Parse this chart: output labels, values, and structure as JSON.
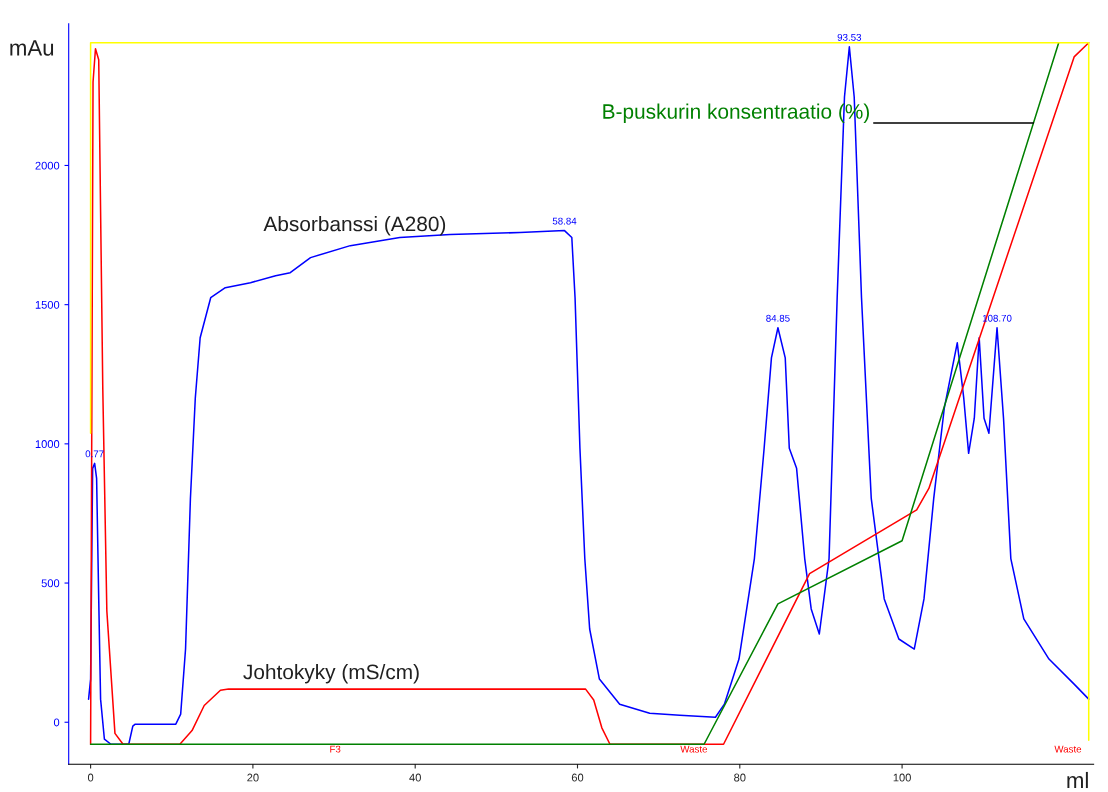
{
  "chart_data": {
    "type": "line",
    "xlabel": "ml",
    "ylabel": "mAu",
    "xlim": [
      -2.7,
      123.6
    ],
    "ylim": [
      -151,
      2509
    ],
    "xticks": [
      0,
      20,
      40,
      60,
      80,
      100
    ],
    "yticks": [
      0,
      500,
      1000,
      1500,
      2000
    ],
    "grid": false,
    "legend": false,
    "marker": "none",
    "line_style": "solid",
    "series": [
      {
        "name": "Absorbanssi (A280)",
        "color": "#0000ff",
        "x": [
          -0.25,
          0,
          0.25,
          0.5,
          0.74,
          1.0,
          1.23,
          1.7,
          2.5,
          4.7,
          5.2,
          5.5,
          10.5,
          11.1,
          11.7,
          12.3,
          12.9,
          13.5,
          14.8,
          16.6,
          19.7,
          22.8,
          24.6,
          27.1,
          32,
          38.1,
          44.3,
          52.9,
          58.4,
          59.3,
          59.7,
          60.3,
          60.9,
          61.5,
          62.7,
          65.2,
          68.9,
          72.6,
          77,
          78.1,
          79.9,
          81.8,
          83,
          83.9,
          84.7,
          85.6,
          86.1,
          87,
          88,
          88.8,
          89.8,
          91,
          92,
          92.9,
          93.5,
          94.1,
          95,
          96.2,
          97.8,
          99.6,
          101.5,
          102.7,
          103.9,
          105.2,
          106.8,
          107.6,
          108.2,
          108.9,
          109.5,
          110.1,
          110.7,
          111.7,
          112.5,
          113.4,
          115,
          118.1,
          121.2,
          123
        ],
        "values": [
          83,
          155,
          912,
          930,
          876,
          443,
          83,
          -61,
          -79,
          -79,
          -14,
          -7,
          -7,
          29,
          263,
          804,
          1164,
          1381,
          1525,
          1561,
          1579,
          1604,
          1615,
          1669,
          1712,
          1741,
          1752,
          1759,
          1766,
          1741,
          1525,
          984,
          588,
          335,
          155,
          65,
          32,
          25,
          18,
          65,
          227,
          588,
          984,
          1309,
          1417,
          1309,
          984,
          912,
          588,
          407,
          317,
          588,
          1525,
          2246,
          2426,
          2246,
          1525,
          804,
          443,
          299,
          263,
          443,
          804,
          1128,
          1363,
          1164,
          966,
          1092,
          1381,
          1092,
          1038,
          1417,
          1092,
          588,
          371,
          227,
          137,
          83
        ]
      },
      {
        "name": "Johtokyky (mS/cm)",
        "color": "#ff0000",
        "x": [
          0,
          0.3,
          0.6,
          1.0,
          1.5,
          2.0,
          3.0,
          4.0,
          11,
          12.5,
          14,
          16,
          17,
          61,
          62,
          63,
          64,
          78,
          88.6,
          101.8,
          103.3,
          121.2,
          123
        ],
        "values": [
          -79,
          2300,
          2419,
          2380,
          1200,
          400,
          -40,
          -79,
          -79,
          -30,
          60,
          115,
          119,
          119,
          80,
          -20,
          -79,
          -79,
          534,
          763,
          840,
          2390,
          2441
        ]
      },
      {
        "name": "B-puskurin konsentraatio (%)",
        "color": "#008000",
        "x": [
          0,
          75.6,
          84.7,
          100,
          119.3
        ],
        "values": [
          -79,
          -79,
          425,
          652,
          2441
        ]
      },
      {
        "color": "#ffff00",
        "x": [
          0,
          0,
          123,
          123
        ],
        "values": [
          1038,
          2441,
          2441,
          -65
        ]
      }
    ],
    "annotations": [
      {
        "text": "0.77",
        "x": 0.5,
        "y": 930
      },
      {
        "text": "58.84",
        "x": 58.4,
        "y": 1766
      },
      {
        "text": "84.85",
        "x": 84.7,
        "y": 1417
      },
      {
        "text": "93.53",
        "x": 93.5,
        "y": 2426
      },
      {
        "text": "108.70",
        "x": 111.7,
        "y": 1417
      },
      "F3",
      "Waste",
      "Waste"
    ]
  }
}
